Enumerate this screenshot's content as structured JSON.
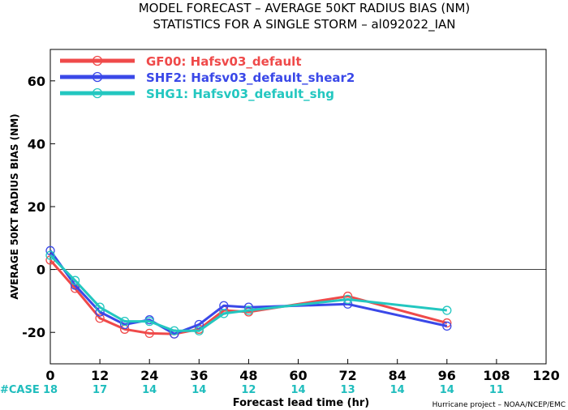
{
  "chart_data": {
    "type": "line",
    "title_line1": "MODEL FORECAST – AVERAGE 50KT RADIUS BIAS (NM)",
    "title_line2": "STATISTICS FOR A SINGLE STORM – al092022_IAN",
    "ylabel": "AVERAGE 50KT RADIUS BIAS (NM)",
    "xlabel": "Forecast lead time (hr)",
    "credit": "Hurricane project – NOAA/NCEP/EMC",
    "case_label": "#CASE",
    "xlim": [
      0,
      120
    ],
    "ylim": [
      -30,
      70
    ],
    "xticks": [
      0,
      12,
      24,
      36,
      48,
      60,
      72,
      84,
      96,
      108,
      120
    ],
    "yticks": [
      -20,
      0,
      20,
      40,
      60
    ],
    "case_counts": [
      {
        "x": 0,
        "n": "18"
      },
      {
        "x": 12,
        "n": "17"
      },
      {
        "x": 24,
        "n": "14"
      },
      {
        "x": 36,
        "n": "14"
      },
      {
        "x": 48,
        "n": "12"
      },
      {
        "x": 60,
        "n": "14"
      },
      {
        "x": 72,
        "n": "13"
      },
      {
        "x": 84,
        "n": "14"
      },
      {
        "x": 96,
        "n": "14"
      },
      {
        "x": 108,
        "n": "11"
      }
    ],
    "series": [
      {
        "name": "GF00: Hafsv03_default",
        "color": "#ef4a4a",
        "points": [
          [
            0,
            3
          ],
          [
            6,
            -6
          ],
          [
            12,
            -15.5
          ],
          [
            18,
            -19
          ],
          [
            24,
            -20.3
          ],
          [
            30,
            -20.5
          ],
          [
            36,
            -19
          ],
          [
            42,
            -13
          ],
          [
            48,
            -13.5
          ],
          [
            72,
            -8.5
          ],
          [
            96,
            -17
          ]
        ]
      },
      {
        "name": "SHF2: Hafsv03_default_shear2",
        "color": "#3a48e8",
        "points": [
          [
            0,
            6
          ],
          [
            6,
            -5
          ],
          [
            12,
            -13.5
          ],
          [
            18,
            -17.5
          ],
          [
            24,
            -16
          ],
          [
            30,
            -20.5
          ],
          [
            36,
            -17.5
          ],
          [
            42,
            -11.5
          ],
          [
            48,
            -12
          ],
          [
            72,
            -11
          ],
          [
            96,
            -18
          ]
        ]
      },
      {
        "name": "SHG1: Hafsv03_default_shg",
        "color": "#23c7c0",
        "points": [
          [
            0,
            4.5
          ],
          [
            6,
            -3.5
          ],
          [
            12,
            -12
          ],
          [
            18,
            -16.5
          ],
          [
            24,
            -16.5
          ],
          [
            30,
            -19.5
          ],
          [
            36,
            -19.5
          ],
          [
            42,
            -14
          ],
          [
            48,
            -13
          ],
          [
            72,
            -9.5
          ],
          [
            96,
            -13
          ]
        ]
      }
    ]
  }
}
